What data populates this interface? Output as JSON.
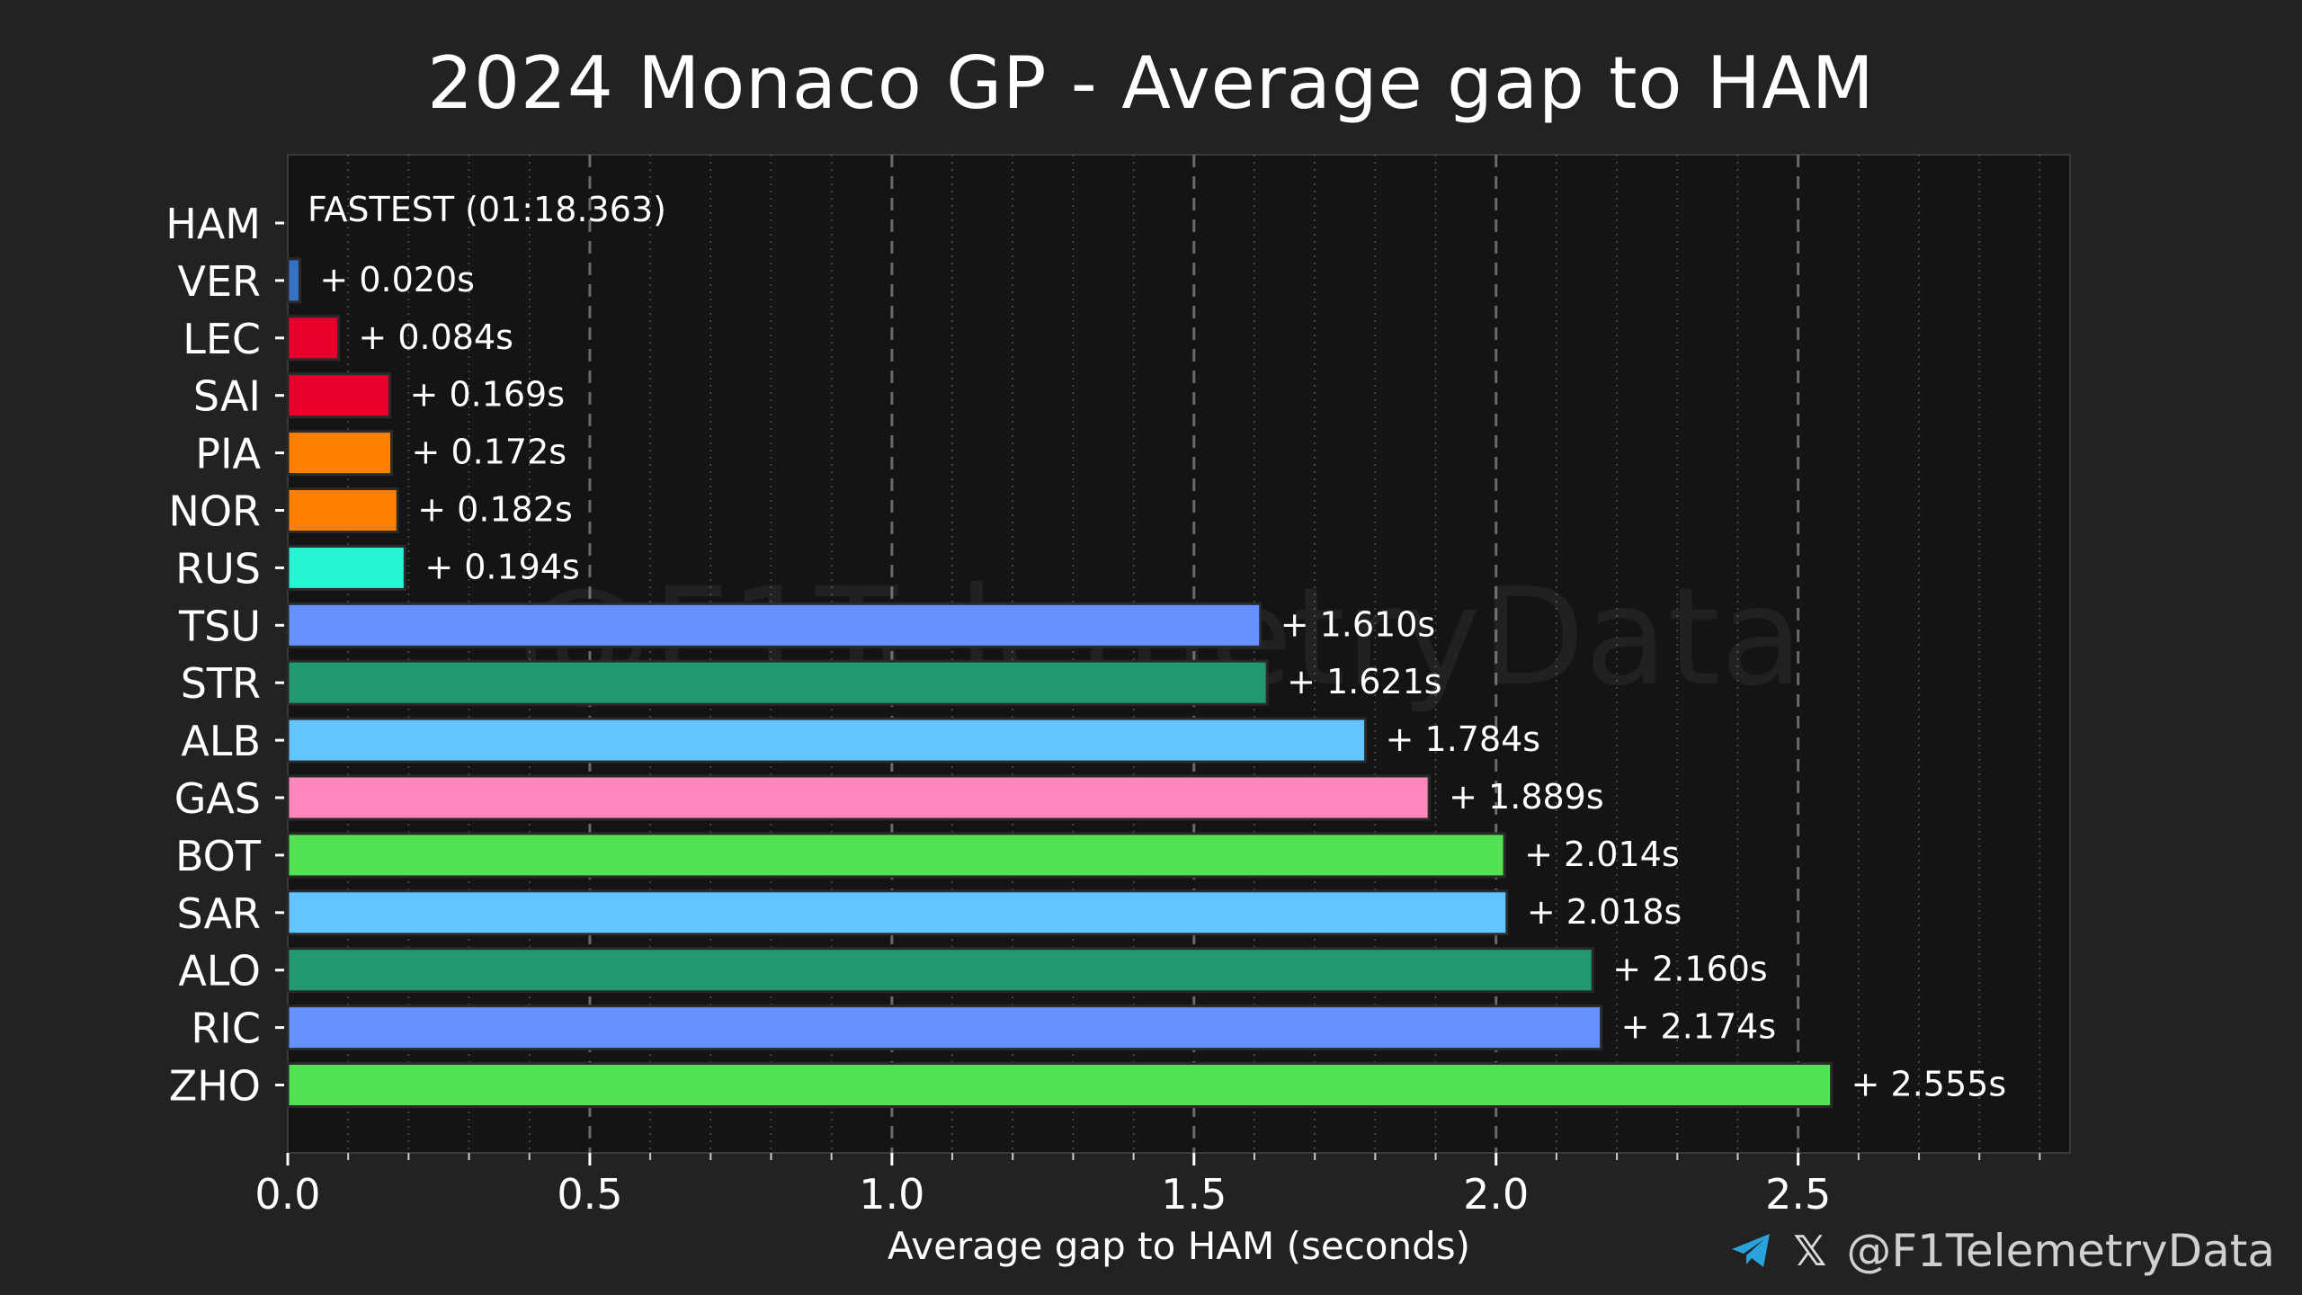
{
  "chart_data": {
    "type": "bar",
    "orientation": "horizontal",
    "title": "2024 Monaco GP - Average gap to HAM",
    "xlabel": "Average gap to HAM (seconds)",
    "ylabel": "",
    "xlim": [
      0,
      2.95
    ],
    "x_ticks": [
      "0.0",
      "0.5",
      "1.0",
      "1.5",
      "2.0",
      "2.5"
    ],
    "x_tick_values": [
      0,
      0.5,
      1.0,
      1.5,
      2.0,
      2.5
    ],
    "grid": "vertical dashed major, dotted minor",
    "fastest_label": "FASTEST (01:18.363)",
    "categories": [
      "HAM",
      "VER",
      "LEC",
      "SAI",
      "PIA",
      "NOR",
      "RUS",
      "TSU",
      "STR",
      "ALB",
      "GAS",
      "BOT",
      "SAR",
      "ALO",
      "RIC",
      "ZHO"
    ],
    "values": [
      0,
      0.02,
      0.084,
      0.169,
      0.172,
      0.182,
      0.194,
      1.61,
      1.621,
      1.784,
      1.889,
      2.014,
      2.018,
      2.16,
      2.174,
      2.555
    ],
    "labels": [
      "",
      "+ 0.020s",
      "+ 0.084s",
      "+ 0.169s",
      "+ 0.172s",
      "+ 0.182s",
      "+ 0.194s",
      "+ 1.610s",
      "+ 1.621s",
      "+ 1.784s",
      "+ 1.889s",
      "+ 2.014s",
      "+ 2.018s",
      "+ 2.160s",
      "+ 2.174s",
      "+ 2.555s"
    ],
    "colors": [
      "#27f4d2",
      "#3671c6",
      "#e8002d",
      "#e8002d",
      "#ff8000",
      "#ff8000",
      "#27f4d2",
      "#6692ff",
      "#229971",
      "#64c4ff",
      "#ff87bc",
      "#52e252",
      "#64c4ff",
      "#229971",
      "#6692ff",
      "#52e252"
    ],
    "watermark": "@F1TelemetryData"
  },
  "footer": {
    "handle": "@F1TelemetryData",
    "telegram_icon": "telegram-icon",
    "x_icon": "x-icon",
    "x_glyph": "𝕏"
  },
  "theme": {
    "background": "#222222",
    "plot_background": "#141414",
    "grid_color": "#555555"
  }
}
